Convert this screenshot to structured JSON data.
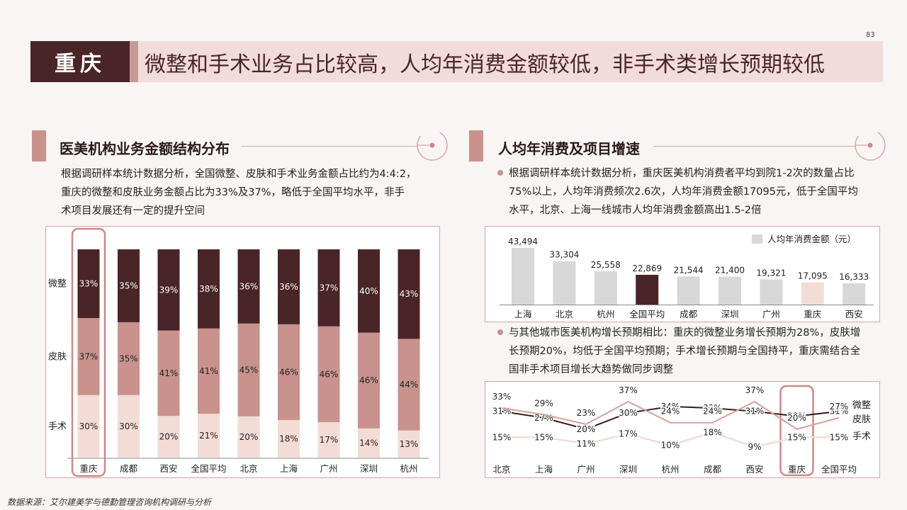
{
  "page_number": "83",
  "header": {
    "city": "重庆",
    "title": "微整和手术业务占比较高，人均年消费金额较低，非手术类增长预期较低"
  },
  "left_section": {
    "title": "医美机构业务金额结构分布",
    "lines": [
      "根据调研样本统计数据分析，全国微整、皮肤和手术业务金额占比约为4:4:2，",
      "重庆的微整和皮肤业务金额占比为33%及37%，略低于全国平均水平，非手",
      "术项目发展还有一定的提升空间"
    ]
  },
  "right_section": {
    "title": "人均年消费及项目增速",
    "bullet1": [
      "根据调研样本统计数据分析，重庆医美机构消费者平均到院1-2次的数量占比",
      "75%以上，人均年消费频次2.6次，人均年消费金额17095元，低于全国平均",
      "水平，北京、上海一线城市人均年消费金额高出1.5-2倍"
    ],
    "bullet2": [
      "与其他城市医美机构增长预期相比：重庆的微整业务增长预期为28%，皮肤增",
      "长预期20%，均低于全国平均预期；手术增长预期与全国持平，重庆需结合全",
      "国非手术项目增长大趋势做同步调整"
    ]
  },
  "colors": {
    "dark": "#4a2528",
    "mid": "#c9928d",
    "light": "#f4dcd6",
    "grey": "#d8d8d8"
  },
  "chart_data": [
    {
      "type": "bar",
      "stacked": true,
      "categories": [
        "重庆",
        "成都",
        "西安",
        "全国平均",
        "北京",
        "上海",
        "广州",
        "深圳",
        "杭州"
      ],
      "series": [
        {
          "name": "微整",
          "values": [
            33,
            35,
            39,
            38,
            36,
            36,
            37,
            40,
            43
          ],
          "labels": [
            "33%",
            "35%",
            "39%",
            "38%",
            "36%",
            "36%",
            "37%",
            "40%",
            "43%"
          ]
        },
        {
          "name": "皮肤",
          "values": [
            37,
            35,
            41,
            41,
            45,
            46,
            46,
            46,
            44
          ],
          "labels": [
            "37%",
            "35%",
            "41%",
            "41%",
            "45%",
            "46%",
            "46%",
            "46%",
            "44%"
          ]
        },
        {
          "name": "手术",
          "values": [
            30,
            30,
            20,
            21,
            20,
            18,
            17,
            14,
            13
          ],
          "labels": [
            "30%",
            "30%",
            "20%",
            "21%",
            "20%",
            "18%",
            "17%",
            "14%",
            "13%"
          ]
        }
      ],
      "highlight_category": "重庆"
    },
    {
      "type": "bar",
      "legend": "人均年消费金额（元）",
      "categories": [
        "上海",
        "北京",
        "杭州",
        "全国平均",
        "成都",
        "深圳",
        "广州",
        "重庆",
        "西安"
      ],
      "values": [
        43494,
        33304,
        25558,
        22869,
        21544,
        21400,
        19321,
        17095,
        16333
      ],
      "labels": [
        "43,494",
        "33,304",
        "25,558",
        "22,869",
        "21,544",
        "21,400",
        "19,321",
        "17,095",
        "16,333"
      ],
      "highlight": {
        "全国平均": "dark",
        "重庆": "light"
      }
    },
    {
      "type": "line",
      "categories": [
        "北京",
        "上海",
        "广州",
        "深圳",
        "杭州",
        "成都",
        "西安",
        "重庆",
        "全国平均"
      ],
      "series": [
        {
          "name": "微整",
          "values": [
            31,
            27,
            20,
            30,
            34,
            33,
            31,
            28,
            31
          ],
          "labels": [
            "31%",
            "27%",
            "20%",
            "30%",
            "34%",
            "33%",
            "31%",
            "28%",
            "31%"
          ]
        },
        {
          "name": "皮肤",
          "values": [
            33,
            29,
            23,
            37,
            24,
            24,
            37,
            20,
            27
          ],
          "labels": [
            "33%",
            "29%",
            "23%",
            "37%",
            "24%",
            "24%",
            "37%",
            "20%",
            "27%"
          ]
        },
        {
          "name": "手术",
          "values": [
            15,
            15,
            11,
            17,
            10,
            18,
            9,
            15,
            15
          ],
          "labels": [
            "15%",
            "15%",
            "11%",
            "17%",
            "10%",
            "18%",
            "9%",
            "15%",
            "15%"
          ]
        }
      ],
      "highlight_category": "重庆"
    }
  ],
  "source_note": "数据来源：艾尔建美学与德勤管理咨询机构调研与分析"
}
